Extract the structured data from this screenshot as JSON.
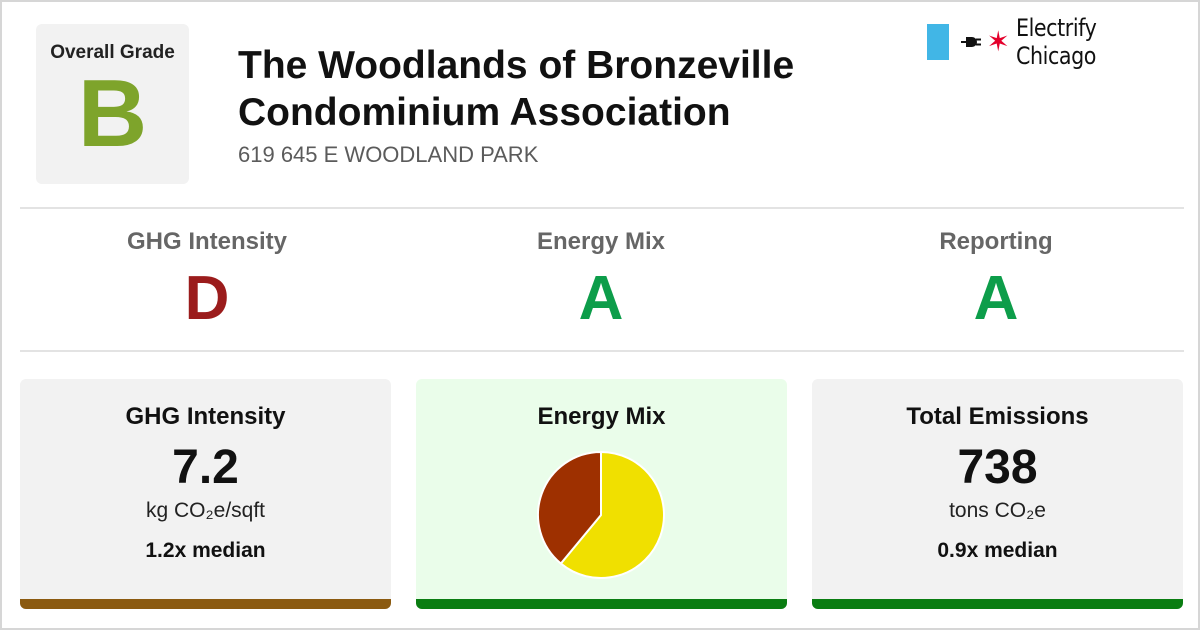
{
  "header": {
    "overall_grade_label": "Overall Grade",
    "overall_grade": "B",
    "overall_grade_color": "#7ea42b",
    "building_name": "The Woodlands of Bronzeville Condominium Association",
    "address": "619 645 E WOODLAND PARK"
  },
  "logo": {
    "brand": "Electrify Chicago",
    "flag_color": "#41b6e6",
    "star_color": "#e4002b",
    "icons": [
      "plug-icon",
      "chicago-star-icon"
    ]
  },
  "subgrades": [
    {
      "label": "GHG Intensity",
      "grade": "D",
      "color": "#9b1c1c"
    },
    {
      "label": "Energy Mix",
      "grade": "A",
      "color": "#0d9d4a"
    },
    {
      "label": "Reporting",
      "grade": "A",
      "color": "#0d9d4a"
    }
  ],
  "cards": {
    "ghg": {
      "title": "GHG Intensity",
      "value": "7.2",
      "unit": "kg CO₂e/sqft",
      "median": "1.2x median",
      "bar_color": "#8b5a10",
      "background": "#f2f2f2"
    },
    "energy": {
      "title": "Energy Mix",
      "bar_color": "#0a7d12",
      "background": "#eafdea"
    },
    "emissions": {
      "title": "Total Emissions",
      "value": "738",
      "unit": "tons CO₂e",
      "median": "0.9x median",
      "bar_color": "#0a7d12",
      "background": "#f2f2f2"
    }
  },
  "chart_data": {
    "type": "pie",
    "slices": [
      {
        "value": 0.61,
        "color": "#f0e000"
      },
      {
        "value": 0.39,
        "color": "#9e3000"
      }
    ]
  }
}
